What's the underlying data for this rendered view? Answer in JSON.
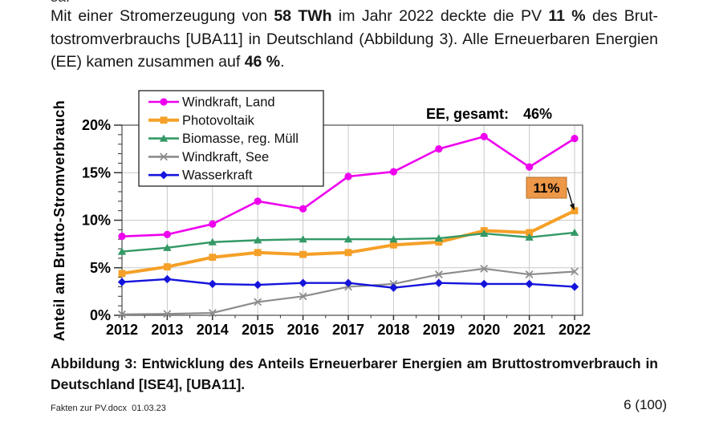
{
  "page": {
    "clipped_fragment": "sa.",
    "paragraph": {
      "lines": [
        [
          {
            "t": "Mit einer Stromerzeugung von "
          },
          {
            "t": "58 TWh",
            "b": true
          },
          {
            "t": " im Jahr 2022 deckte die PV "
          },
          {
            "t": "11 %",
            "b": true
          },
          {
            "t": " des Brut-"
          }
        ],
        [
          {
            "t": "tostromverbrauchs [UBA11] in Deutschland (Abbildung 3). Alle Erneuerbaren Energien"
          }
        ],
        [
          {
            "t": "(EE) kamen zusammen auf "
          },
          {
            "t": "46 %",
            "b": true
          },
          {
            "t": "."
          }
        ]
      ]
    },
    "caption": {
      "lines": [
        "Abbildung 3: Entwicklung des Anteils Erneuerbarer Energien am Bruttostromverbrauch in",
        "Deutschland [ISE4], [UBA11]."
      ]
    },
    "footer": {
      "left": "Fakten zur PV.docx  01.03.23",
      "right": "6 (100)"
    }
  },
  "chart_data": {
    "type": "line",
    "title": "",
    "xlabel": "",
    "ylabel": "Anteil am Brutto-Stromverbrauch",
    "ylim": [
      0,
      20
    ],
    "grid": true,
    "legend_position": "top-left",
    "y_ticks": [
      "0%",
      "5%",
      "10%",
      "15%",
      "20%"
    ],
    "x": [
      2012,
      2013,
      2014,
      2015,
      2016,
      2017,
      2018,
      2019,
      2020,
      2021,
      2022
    ],
    "series": [
      {
        "name": "Windkraft, Land",
        "color": "#EE00EE",
        "marker": "circle",
        "width": 2.6,
        "values": [
          8.3,
          8.5,
          9.6,
          12.0,
          11.2,
          14.6,
          15.1,
          17.5,
          18.8,
          15.6,
          18.6
        ]
      },
      {
        "name": "Photovoltaik",
        "color": "#F5A028",
        "marker": "square",
        "width": 4.0,
        "values": [
          4.4,
          5.1,
          6.1,
          6.6,
          6.4,
          6.6,
          7.4,
          7.7,
          8.9,
          8.7,
          11.0
        ]
      },
      {
        "name": "Biomasse, reg. Müll",
        "color": "#339966",
        "marker": "triangle",
        "width": 2.4,
        "values": [
          6.7,
          7.1,
          7.7,
          7.9,
          8.0,
          8.0,
          8.0,
          8.1,
          8.6,
          8.2,
          8.7
        ]
      },
      {
        "name": "Windkraft, See",
        "color": "#8C8C8C",
        "marker": "x",
        "width": 2.2,
        "values": [
          0.1,
          0.15,
          0.25,
          1.4,
          2.0,
          3.0,
          3.3,
          4.3,
          4.9,
          4.3,
          4.6
        ]
      },
      {
        "name": "Wasserkraft",
        "color": "#1414DC",
        "marker": "diamond",
        "width": 2.4,
        "values": [
          3.5,
          3.8,
          3.3,
          3.2,
          3.4,
          3.4,
          2.9,
          3.4,
          3.3,
          3.3,
          3.0
        ]
      }
    ],
    "ee_label": "EE, gesamt:",
    "ee_value": "46%",
    "callout": {
      "text": "11%",
      "fill": "#ED9748",
      "border": "#B3702A",
      "target_series": "Photovoltaik",
      "target_year": 2022
    },
    "colors": {
      "gridline": "#C9C9C9",
      "plot_border": "#595959",
      "axis_tick": "#333333"
    }
  }
}
